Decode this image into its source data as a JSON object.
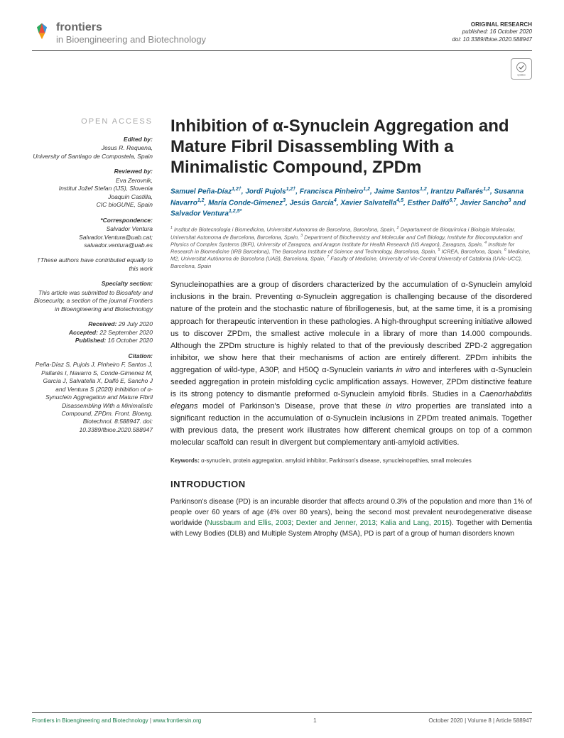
{
  "header": {
    "logo_title": "frontiers",
    "logo_sub": "in Bioengineering and Biotechnology",
    "pub_type": "ORIGINAL RESEARCH",
    "pub_date": "published: 16 October 2020",
    "doi": "doi: 10.3389/fbioe.2020.588947"
  },
  "sidebar": {
    "open_access": "OPEN ACCESS",
    "edited_label": "Edited by:",
    "edited_name": "Jesus R. Requena,",
    "edited_affil": "University of Santiago de Compostela, Spain",
    "reviewed_label": "Reviewed by:",
    "reviewer1_name": "Eva Zerovnik,",
    "reviewer1_affil": "Institut Jožef Stefan (IJS), Slovenia",
    "reviewer2_name": "Joaquín Castilla,",
    "reviewer2_affil": "CIC bioGUNE, Spain",
    "corr_label": "*Correspondence:",
    "corr_name": "Salvador Ventura",
    "corr_email1": "Salvador.Ventura@uab.cat;",
    "corr_email2": "salvador.ventura@uab.es",
    "equal_note": "†These authors have contributed equally to this work",
    "specialty_label": "Specialty section:",
    "specialty_text": "This article was submitted to Biosafety and Biosecurity, a section of the journal Frontiers in Bioengineering and Biotechnology",
    "received_label": "Received:",
    "received_date": "29 July 2020",
    "accepted_label": "Accepted:",
    "accepted_date": "22 September 2020",
    "published_label": "Published:",
    "published_date": "16 October 2020",
    "citation_label": "Citation:",
    "citation_text": "Peña-Díaz S, Pujols J, Pinheiro F, Santos J, Pallarés I, Navarro S, Conde-Gimenez M, García J, Salvatella X, Dalfó E, Sancho J and Ventura S (2020) Inhibition of α-Synuclein Aggregation and Mature Fibril Disassembling With a Minimalistic Compound, ZPDm. Front. Bioeng. Biotechnol. 8:588947. doi: 10.3389/fbioe.2020.588947"
  },
  "article": {
    "title": "Inhibition of α-Synuclein Aggregation and Mature Fibril Disassembling With a Minimalistic Compound, ZPDm",
    "authors": "Samuel Peña-Díaz<sup>1,2†</sup>, Jordi Pujols<sup>1,2†</sup>, Francisca Pinheiro<sup>1,2</sup>, Jaime Santos<sup>1,2</sup>, Irantzu Pallarés<sup>1,2</sup>, Susanna Navarro<sup>1,2</sup>, María Conde-Gimenez<sup>3</sup>, Jesús García<sup>4</sup>, Xavier Salvatella<sup>4,5</sup>, Esther Dalfó<sup>6,7</sup>, Javier Sancho<sup>3</sup> and Salvador Ventura<sup>1,2,5*</sup>",
    "affiliations": "<sup>1</sup> Institut de Biotecnologia i Biomedicina, Universitat Autonoma de Barcelona, Barcelona, Spain, <sup>2</sup> Departament de Bioquímica i Biologia Molecular, Universitat Autonoma de Barcelona, Barcelona, Spain, <sup>3</sup> Department of Biochemistry and Molecular and Cell Biology, Institute for Biocomputation and Physics of Complex Systems (BIFI), University of Zaragoza, and Aragon Institute for Health Research (IIS Aragon), Zaragoza, Spain, <sup>4</sup> Institute for Research in Biomedicine (IRB Barcelona), The Barcelona Institute of Science and Technology, Barcelona, Spain, <sup>5</sup> ICREA, Barcelona, Spain, <sup>6</sup> Medicine, M2, Universitat Autònoma de Barcelona (UAB), Barcelona, Spain, <sup>7</sup> Faculty of Medicine, University of Vic-Central University of Catalonia (UVic-UCC), Barcelona, Spain",
    "abstract": "Synucleinopathies are a group of disorders characterized by the accumulation of α-Synuclein amyloid inclusions in the brain. Preventing α-Synuclein aggregation is challenging because of the disordered nature of the protein and the stochastic nature of fibrillogenesis, but, at the same time, it is a promising approach for therapeutic intervention in these pathologies. A high-throughput screening initiative allowed us to discover ZPDm, the smallest active molecule in a library of more than 14.000 compounds. Although the ZPDm structure is highly related to that of the previously described ZPD-2 aggregation inhibitor, we show here that their mechanisms of action are entirely different. ZPDm inhibits the aggregation of wild-type, A30P, and H50Q α-Synuclein variants <i>in vitro</i> and interferes with α-Synuclein seeded aggregation in protein misfolding cyclic amplification assays. However, ZPDm distinctive feature is its strong potency to dismantle preformed α-Synuclein amyloid fibrils. Studies in a <i>Caenorhabditis elegans</i> model of Parkinson's Disease, prove that these <i>in vitro</i> properties are translated into a significant reduction in the accumulation of α-Synuclein inclusions in ZPDm treated animals. Together with previous data, the present work illustrates how different chemical groups on top of a common molecular scaffold can result in divergent but complementary anti-amyloid activities.",
    "keywords_label": "Keywords:",
    "keywords": "α-synuclein, protein aggregation, amyloid inhibitor, Parkinson's disease, synucleinopathies, small molecules",
    "intro_heading": "INTRODUCTION",
    "intro_text": "Parkinson's disease (PD) is an incurable disorder that affects around 0.3% of the population and more than 1% of people over 60 years of age (4% over 80 years), being the second most prevalent neurodegenerative disease worldwide (<span class='ref'>Nussbaum and Ellis, 2003</span>; <span class='ref'>Dexter and Jenner, 2013</span>; <span class='ref'>Kalia and Lang, 2015</span>). Together with Dementia with Lewy Bodies (DLB) and Multiple System Atrophy (MSA), PD is part of a group of human disorders known"
  },
  "footer": {
    "left_journal": "Frontiers in Bioengineering and Biotechnology",
    "left_url": "www.frontiersin.org",
    "page_num": "1",
    "right": "October 2020 | Volume 8 | Article 588947"
  },
  "colors": {
    "link_green": "#1a7a4a",
    "author_blue": "#0b5c8a"
  }
}
